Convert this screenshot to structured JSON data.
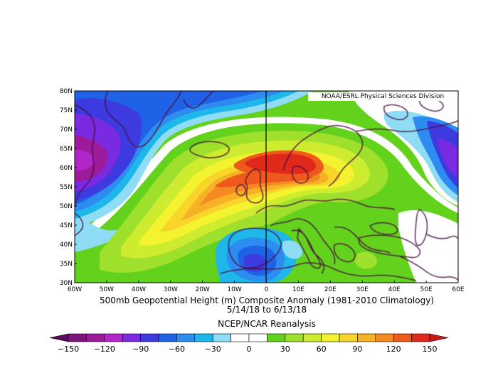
{
  "map": {
    "credit": "NOAA/ESRL Physical Sciences Division",
    "title": "500mb Geopotential Height (m) Composite Anomaly (1981-2010 Climatology)",
    "date_range": "5/14/18  to 6/13/18",
    "dataset": "NCEP/NCAR Reanalysis",
    "lat_labels": [
      "80N",
      "75N",
      "70N",
      "65N",
      "60N",
      "55N",
      "50N",
      "45N",
      "40N",
      "35N",
      "30N"
    ],
    "lon_labels": [
      "60W",
      "50W",
      "40W",
      "30W",
      "20W",
      "10W",
      "0",
      "10E",
      "20E",
      "30E",
      "40E",
      "50E",
      "60E"
    ],
    "extent": {
      "lon": [
        -60,
        60
      ],
      "lat": [
        30,
        80
      ]
    }
  },
  "colorbar": {
    "labels": [
      "-150",
      "-120",
      "-90",
      "-60",
      "-30",
      "0",
      "30",
      "60",
      "90",
      "120",
      "150"
    ],
    "colors": [
      "#5a0a5a",
      "#7a137a",
      "#9b1b9b",
      "#b026c8",
      "#7a2ae0",
      "#3d3ae0",
      "#1f62e6",
      "#2d8cf0",
      "#1fb7ea",
      "#8fdcf5",
      "#ffffff",
      "#ffffff",
      "#62d21c",
      "#9ee02c",
      "#cdeb2f",
      "#f3f42f",
      "#f9d52a",
      "#f7b126",
      "#f48a21",
      "#ee5a1c",
      "#e0291a",
      "#c41a17"
    ]
  }
}
